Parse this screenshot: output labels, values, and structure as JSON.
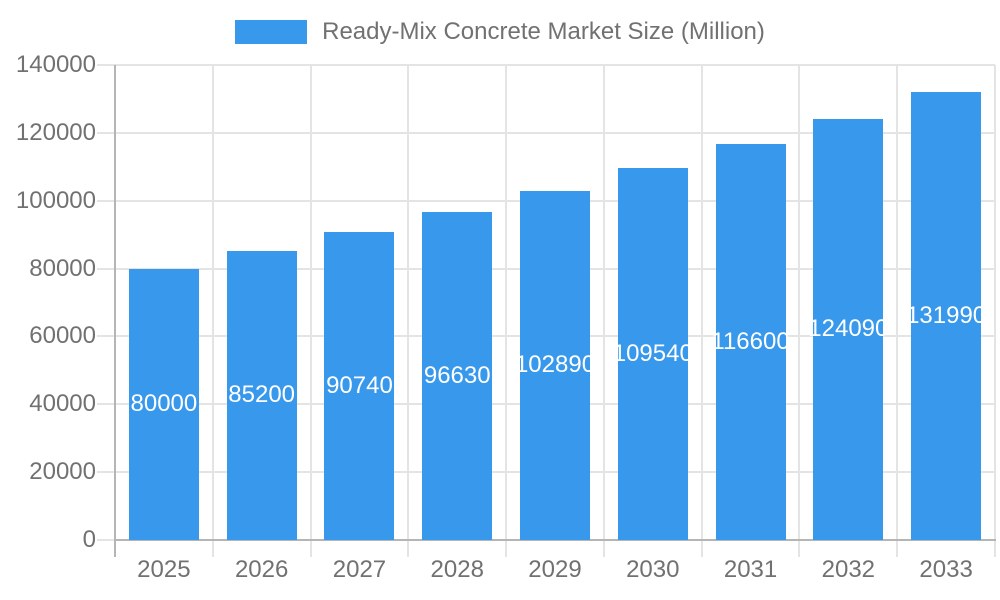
{
  "legend": {
    "label": "Ready-Mix Concrete Market Size (Million)"
  },
  "chart_data": {
    "type": "bar",
    "title": "Ready-Mix Concrete Market Size (Million)",
    "series_name": "Ready-Mix Concrete Market Size (Million)",
    "categories": [
      "2025",
      "2026",
      "2027",
      "2028",
      "2029",
      "2030",
      "2031",
      "2032",
      "2033"
    ],
    "values": [
      80000,
      85200,
      90740,
      96630,
      102890,
      109540,
      116600,
      124090,
      131990
    ],
    "bar_labels": [
      "80000",
      "85200",
      "90740",
      "96630",
      "102890",
      "109540",
      "116600",
      "124090",
      "131990"
    ],
    "xlabel": "",
    "ylabel": "",
    "ylim": [
      0,
      140000
    ],
    "y_tick_step": 20000,
    "y_tick_labels": [
      "0",
      "20000",
      "40000",
      "60000",
      "80000",
      "100000",
      "120000",
      "140000"
    ],
    "grid": "on",
    "legend_position": "top",
    "colors": {
      "bar": "#3898EC",
      "grid": "#E4E4E4",
      "axis": "#B5B5B5",
      "tick_text": "#717171",
      "bar_label_text": "#FFFFFF",
      "background": "#FFFFFF"
    }
  }
}
